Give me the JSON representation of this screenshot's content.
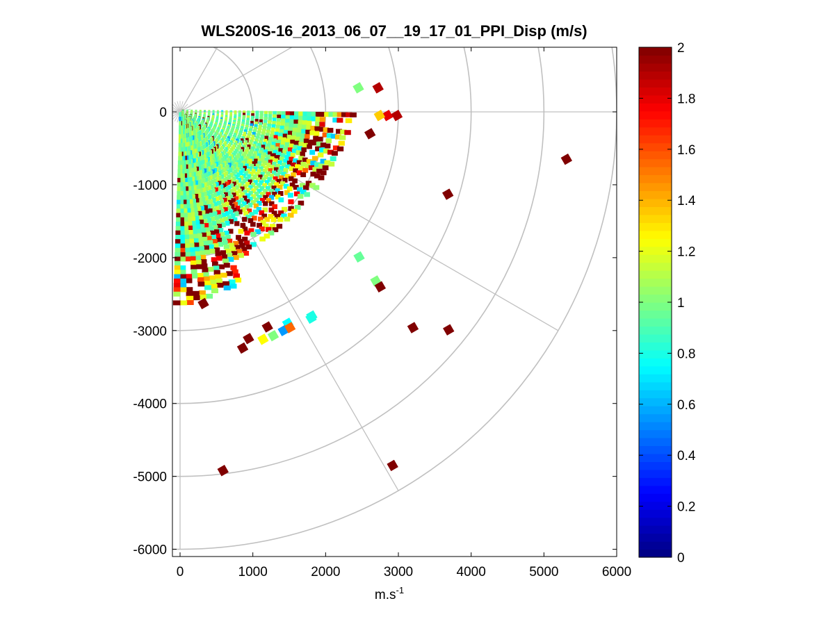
{
  "chart_data": {
    "type": "heatmap",
    "subtype": "polar-ppi",
    "title": "WLS200S-16_2013_06_07__19_17_01_PPI_Disp (m/s)",
    "xlabel": "m.s",
    "xlabel_exponent": "-1",
    "ylabel": "",
    "xlim": [
      -100,
      6000
    ],
    "ylim": [
      -6100,
      900
    ],
    "x_ticks": [
      0,
      1000,
      2000,
      3000,
      4000,
      5000,
      6000
    ],
    "x_tick_labels": [
      "0",
      "1000",
      "2000",
      "3000",
      "4000",
      "5000",
      "6000"
    ],
    "y_ticks": [
      0,
      -1000,
      -2000,
      -3000,
      -4000,
      -5000,
      -6000
    ],
    "y_tick_labels": [
      "0",
      "-1000",
      "-2000",
      "-3000",
      "-4000",
      "-5000",
      "-6000"
    ],
    "colorbar": {
      "range": [
        0,
        2
      ],
      "ticks": [
        0,
        0.2,
        0.4,
        0.6,
        0.8,
        1,
        1.2,
        1.4,
        1.6,
        1.8,
        2
      ],
      "tick_labels": [
        "0",
        "0.2",
        "0.4",
        "0.6",
        "0.8",
        "1",
        "1.2",
        "1.4",
        "1.6",
        "1.8",
        "2"
      ],
      "colormap": "jet"
    },
    "polar_grid": {
      "origin": [
        0,
        0
      ],
      "ring_radii": [
        1000,
        2000,
        3000,
        4000,
        5000,
        6000
      ],
      "spoke_angles_deg": [
        0,
        -30,
        -60,
        -90,
        30,
        60
      ]
    },
    "scan_sector": {
      "azimuth_start_deg": 0,
      "azimuth_end_deg": -92,
      "max_range_dense": 2500
    },
    "isolated_points": [
      {
        "x": 5310,
        "y": -650,
        "v": 2.0
      },
      {
        "x": 3680,
        "y": -1130,
        "v": 2.0
      },
      {
        "x": 2460,
        "y": -1990,
        "v": 0.95
      },
      {
        "x": 2690,
        "y": -2320,
        "v": 1.0
      },
      {
        "x": 2750,
        "y": -2400,
        "v": 2.0
      },
      {
        "x": 3200,
        "y": -2960,
        "v": 2.0
      },
      {
        "x": 3690,
        "y": -2990,
        "v": 2.0
      },
      {
        "x": 1810,
        "y": -2800,
        "v": 0.8
      },
      {
        "x": 1480,
        "y": -2900,
        "v": 0.75
      },
      {
        "x": 1420,
        "y": -3000,
        "v": 0.55
      },
      {
        "x": 1510,
        "y": -2960,
        "v": 1.55
      },
      {
        "x": 1200,
        "y": -2950,
        "v": 2.0
      },
      {
        "x": 1280,
        "y": -3070,
        "v": 1.0
      },
      {
        "x": 1140,
        "y": -3120,
        "v": 1.25
      },
      {
        "x": 940,
        "y": -3110,
        "v": 2.0
      },
      {
        "x": 860,
        "y": -3240,
        "v": 2.0
      },
      {
        "x": 590,
        "y": -4920,
        "v": 2.0
      },
      {
        "x": 2920,
        "y": -4850,
        "v": 2.0
      },
      {
        "x": 2610,
        "y": -300,
        "v": 2.0
      },
      {
        "x": 2720,
        "y": 330,
        "v": 1.9
      },
      {
        "x": 2850,
        "y": -50,
        "v": 1.8
      },
      {
        "x": 2980,
        "y": -50,
        "v": 1.9
      },
      {
        "x": 2740,
        "y": -50,
        "v": 1.35
      },
      {
        "x": 2450,
        "y": 330,
        "v": 1.0
      },
      {
        "x": 320,
        "y": -2630,
        "v": 2.0
      },
      {
        "x": 1800,
        "y": -2830,
        "v": 0.8
      }
    ]
  }
}
